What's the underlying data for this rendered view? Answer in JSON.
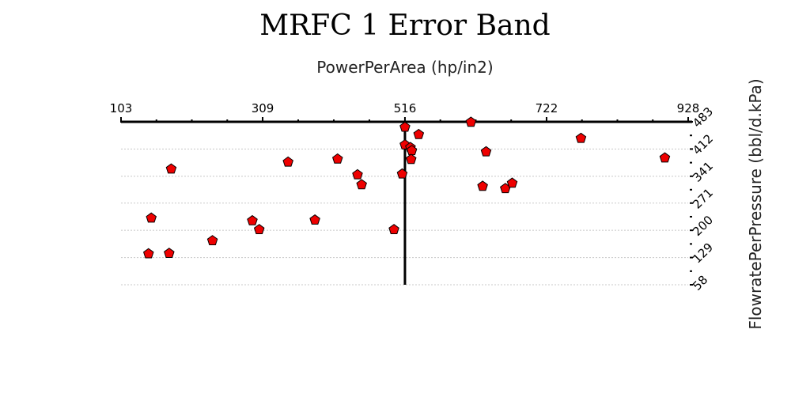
{
  "chart_data": {
    "type": "scatter",
    "title": "MRFC 1 Error Band",
    "xlabel": "PowerPerArea (hp/in2)",
    "ylabel": "FlowratePerPressure (bbl/d.kPa)",
    "xlim": [
      103,
      928
    ],
    "ylim": [
      58,
      483
    ],
    "x_ticks": [
      "103",
      "309",
      "516",
      "722",
      "928"
    ],
    "y_ticks": [
      "483",
      "412",
      "341",
      "271",
      "200",
      "129",
      "58"
    ],
    "x_axis_position": "top",
    "y_axis_position": "right",
    "grid": true,
    "reference_line_x": 516,
    "marker_color": "#ee0000",
    "points": [
      {
        "x": 516,
        "y": 469
      },
      {
        "x": 612,
        "y": 482
      },
      {
        "x": 536,
        "y": 450
      },
      {
        "x": 772,
        "y": 440
      },
      {
        "x": 516,
        "y": 423
      },
      {
        "x": 524,
        "y": 416
      },
      {
        "x": 526,
        "y": 408
      },
      {
        "x": 634,
        "y": 405
      },
      {
        "x": 894,
        "y": 389
      },
      {
        "x": 525,
        "y": 385
      },
      {
        "x": 418,
        "y": 386
      },
      {
        "x": 346,
        "y": 378
      },
      {
        "x": 176,
        "y": 360
      },
      {
        "x": 447,
        "y": 345
      },
      {
        "x": 512,
        "y": 347
      },
      {
        "x": 453,
        "y": 319
      },
      {
        "x": 629,
        "y": 315
      },
      {
        "x": 662,
        "y": 309
      },
      {
        "x": 672,
        "y": 323
      },
      {
        "x": 147,
        "y": 232
      },
      {
        "x": 294,
        "y": 225
      },
      {
        "x": 304,
        "y": 202
      },
      {
        "x": 385,
        "y": 227
      },
      {
        "x": 500,
        "y": 202
      },
      {
        "x": 236,
        "y": 173
      },
      {
        "x": 143,
        "y": 139
      },
      {
        "x": 173,
        "y": 140
      }
    ]
  }
}
